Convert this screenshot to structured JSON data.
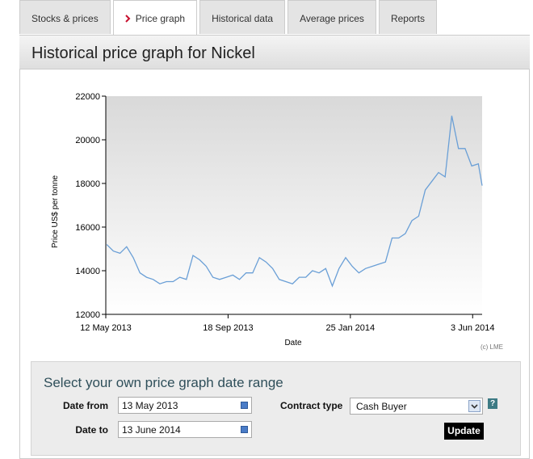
{
  "tabs": [
    "Stocks & prices",
    "Price graph",
    "Historical data",
    "Average prices",
    "Reports"
  ],
  "active_tab": 1,
  "heading": "Historical price graph for Nickel",
  "chart_data": {
    "type": "line",
    "y_label": "Price US$ per tonne",
    "x_label": "Date",
    "note": "(c) LME",
    "color": "#6a9fd6",
    "x": [
      "2013-05-13",
      "2013-05-20",
      "2013-05-27",
      "2013-06-03",
      "2013-06-10",
      "2013-06-17",
      "2013-06-24",
      "2013-07-01",
      "2013-07-08",
      "2013-07-15",
      "2013-07-22",
      "2013-07-29",
      "2013-08-05",
      "2013-08-12",
      "2013-08-19",
      "2013-08-26",
      "2013-09-02",
      "2013-09-09",
      "2013-09-16",
      "2013-09-23",
      "2013-09-30",
      "2013-10-07",
      "2013-10-14",
      "2013-10-21",
      "2013-10-28",
      "2013-11-04",
      "2013-11-11",
      "2013-11-18",
      "2013-11-25",
      "2013-12-02",
      "2013-12-09",
      "2013-12-16",
      "2013-12-23",
      "2013-12-30",
      "2014-01-06",
      "2014-01-13",
      "2014-01-20",
      "2014-01-27",
      "2014-02-03",
      "2014-02-10",
      "2014-02-17",
      "2014-02-24",
      "2014-03-03",
      "2014-03-10",
      "2014-03-17",
      "2014-03-24",
      "2014-03-31",
      "2014-04-07",
      "2014-04-14",
      "2014-04-21",
      "2014-04-28",
      "2014-05-05",
      "2014-05-12",
      "2014-05-19",
      "2014-05-26",
      "2014-06-02",
      "2014-06-09",
      "2014-06-13"
    ],
    "values": [
      15200,
      14900,
      14800,
      15100,
      14600,
      13900,
      13700,
      13600,
      13400,
      13500,
      13500,
      13700,
      13600,
      14700,
      14500,
      14200,
      13700,
      13600,
      13700,
      13800,
      13600,
      13900,
      13900,
      14600,
      14400,
      14100,
      13600,
      13500,
      13400,
      13700,
      13700,
      14000,
      13900,
      14100,
      13300,
      14100,
      14600,
      14200,
      13900,
      14100,
      14200,
      14300,
      14400,
      15500,
      15500,
      15700,
      16300,
      16500,
      17700,
      18100,
      18500,
      18300,
      21100,
      19600,
      19600,
      18800,
      18900,
      17900
    ],
    "xlim": [
      "2013-05-12",
      "2014-06-13"
    ],
    "xticks": [
      {
        "value": "2013-05-12",
        "label": "12 May 2013"
      },
      {
        "value": "2013-09-18",
        "label": "18 Sep 2013"
      },
      {
        "value": "2014-01-25",
        "label": "25 Jan 2014"
      },
      {
        "value": "2014-06-03",
        "label": "3 Jun 2014"
      }
    ],
    "ylim": [
      12000,
      22000
    ],
    "yticks": [
      12000,
      14000,
      16000,
      18000,
      20000,
      22000
    ]
  },
  "form": {
    "title": "Select your own price graph date range",
    "date_from_label": "Date from",
    "date_from": "13 May 2013",
    "date_to_label": "Date to",
    "date_to": "13 June 2014",
    "contract_type_label": "Contract type",
    "contract_type": "Cash Buyer",
    "help": "?",
    "update": "Update"
  }
}
